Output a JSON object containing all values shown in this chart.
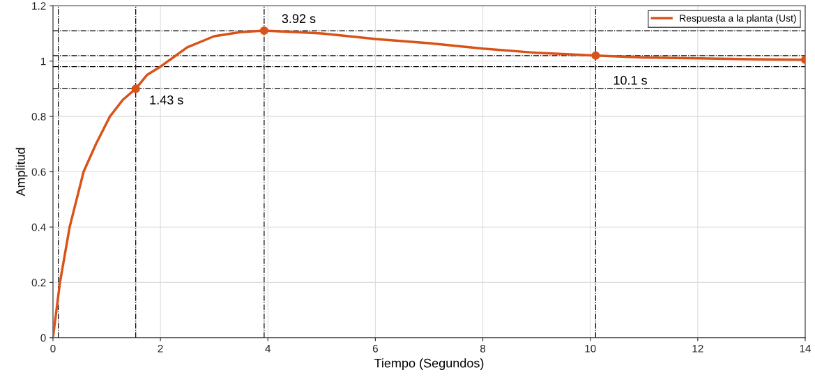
{
  "chart_data": {
    "type": "line",
    "xlabel": "Tiempo (Segundos)",
    "ylabel": "Amplitud",
    "xlim": [
      0,
      14
    ],
    "xticks": [
      0,
      2,
      4,
      6,
      8,
      10,
      12,
      14
    ],
    "ylim": [
      0,
      1.2
    ],
    "yticks": [
      0,
      0.2,
      0.4,
      0.6,
      0.8,
      1,
      1.2
    ],
    "grid": true,
    "legend": "top right",
    "marker": "none",
    "line_style": "solid",
    "series": [
      {
        "name": "Respuesta a la planta (Ust)",
        "color": "#d95319",
        "x": [
          0,
          0.13,
          0.31,
          0.57,
          0.8,
          1.06,
          1.3,
          1.54,
          1.75,
          2.0,
          2.5,
          3.0,
          3.5,
          3.93,
          4.5,
          5,
          6,
          7,
          8,
          9,
          10.1,
          11,
          12,
          13,
          14
        ],
        "values": [
          0,
          0.2,
          0.4,
          0.6,
          0.7,
          0.8,
          0.86,
          0.9,
          0.95,
          0.98,
          1.05,
          1.09,
          1.105,
          1.11,
          1.105,
          1.1,
          1.08,
          1.065,
          1.045,
          1.03,
          1.02,
          1.013,
          1.01,
          1.007,
          1.005
        ]
      },
      {
        "type": "scatter",
        "marker": "circle",
        "color": "#d95319",
        "x": [
          1.54,
          3.93,
          10.1,
          14
        ],
        "values": [
          0.9,
          1.11,
          1.02,
          1.005
        ]
      }
    ],
    "ref_lines": [
      {
        "axis": "x",
        "value": 0.1,
        "color": "#000000",
        "line_style": "dashdot"
      },
      {
        "axis": "x",
        "value": 1.54,
        "color": "#000000",
        "line_style": "dashdot"
      },
      {
        "axis": "x",
        "value": 3.93,
        "color": "#000000",
        "line_style": "dashdot"
      },
      {
        "axis": "x",
        "value": 10.1,
        "color": "#000000",
        "line_style": "dashdot"
      },
      {
        "axis": "y",
        "value": 0.9,
        "color": "#000000",
        "line_style": "dashdot"
      },
      {
        "axis": "y",
        "value": 0.98,
        "color": "#000000",
        "line_style": "dashdot"
      },
      {
        "axis": "y",
        "value": 1.02,
        "color": "#000000",
        "line_style": "dashdot"
      },
      {
        "axis": "y",
        "value": 1.11,
        "color": "#000000",
        "line_style": "dashdot"
      }
    ],
    "annotations": [
      {
        "text": "1.43 s",
        "x": 1.54,
        "y": 0.9
      },
      {
        "text": "3.92 s",
        "x": 3.93,
        "y": 1.11
      },
      {
        "text": "10.1 s",
        "x": 10.1,
        "y": 1.02
      }
    ]
  }
}
